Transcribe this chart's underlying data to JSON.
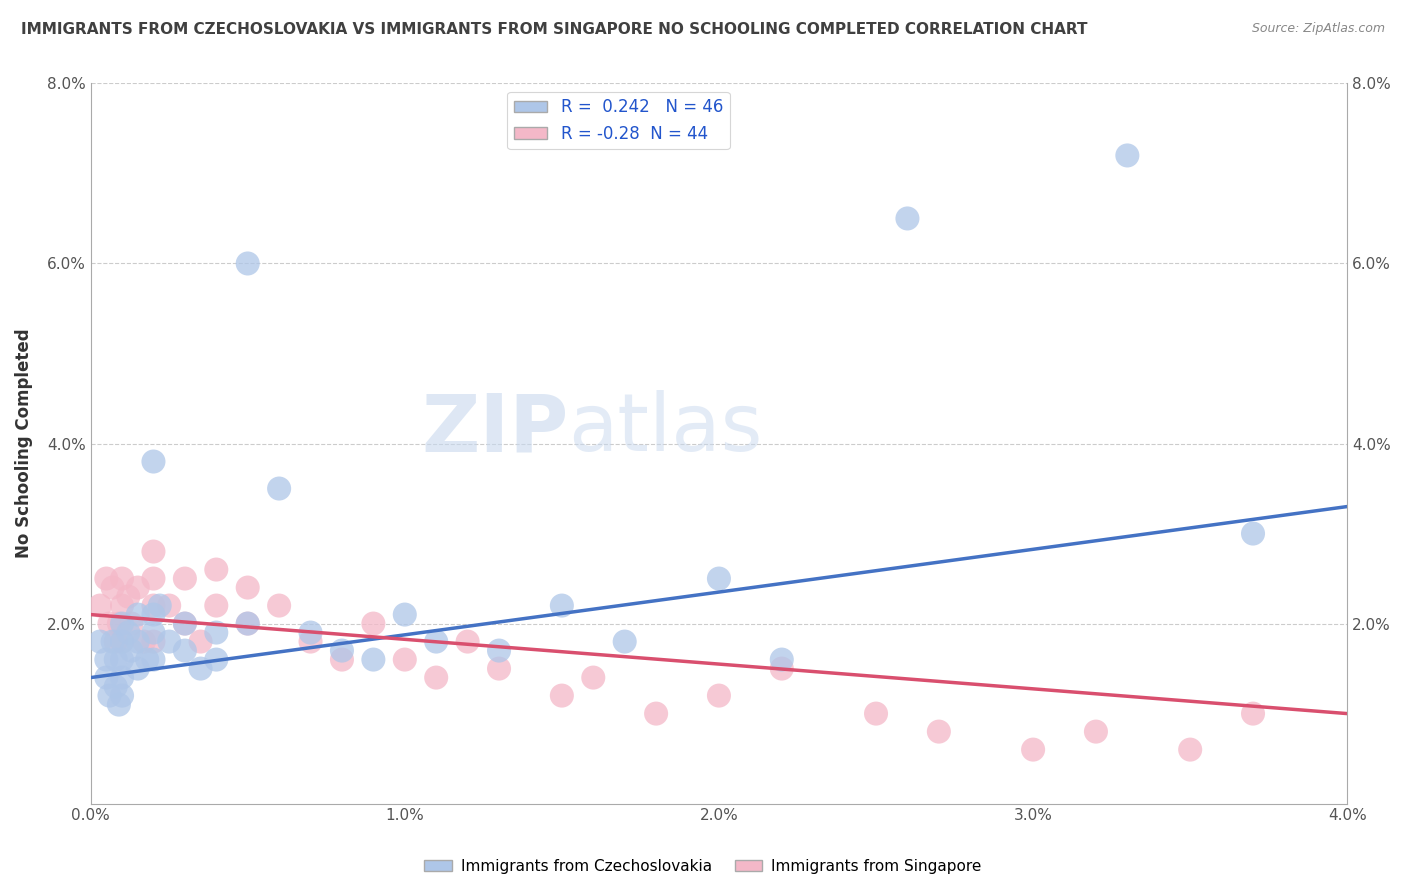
{
  "title": "IMMIGRANTS FROM CZECHOSLOVAKIA VS IMMIGRANTS FROM SINGAPORE NO SCHOOLING COMPLETED CORRELATION CHART",
  "source": "Source: ZipAtlas.com",
  "ylabel": "No Schooling Completed",
  "xlabel": "",
  "watermark": "ZIPatlas",
  "blue_R": 0.242,
  "blue_N": 46,
  "pink_R": -0.28,
  "pink_N": 44,
  "blue_label": "Immigrants from Czechoslovakia",
  "pink_label": "Immigrants from Singapore",
  "xlim": [
    0.0,
    0.04
  ],
  "ylim": [
    0.0,
    0.08
  ],
  "xticks": [
    0.0,
    0.01,
    0.02,
    0.03,
    0.04
  ],
  "yticks": [
    0.0,
    0.02,
    0.04,
    0.06,
    0.08
  ],
  "xtick_labels": [
    "0.0%",
    "1.0%",
    "2.0%",
    "3.0%",
    "4.0%"
  ],
  "ytick_labels": [
    "",
    "2.0%",
    "4.0%",
    "6.0%",
    "8.0%"
  ],
  "blue_color": "#aec6e8",
  "pink_color": "#f4b8c8",
  "blue_line_color": "#4472c4",
  "pink_line_color": "#d94f6e",
  "grid_color": "#cccccc",
  "title_color": "#404040",
  "blue_scatter_x": [
    0.0003,
    0.0005,
    0.0005,
    0.0006,
    0.0007,
    0.0008,
    0.0008,
    0.0009,
    0.001,
    0.001,
    0.001,
    0.001,
    0.001,
    0.0012,
    0.0013,
    0.0015,
    0.0015,
    0.0015,
    0.0018,
    0.002,
    0.002,
    0.002,
    0.002,
    0.0022,
    0.0025,
    0.003,
    0.003,
    0.0035,
    0.004,
    0.004,
    0.005,
    0.005,
    0.006,
    0.007,
    0.008,
    0.009,
    0.01,
    0.011,
    0.013,
    0.015,
    0.017,
    0.02,
    0.022,
    0.026,
    0.033,
    0.037
  ],
  "blue_scatter_y": [
    0.018,
    0.016,
    0.014,
    0.012,
    0.018,
    0.016,
    0.013,
    0.011,
    0.02,
    0.018,
    0.016,
    0.014,
    0.012,
    0.019,
    0.017,
    0.021,
    0.018,
    0.015,
    0.016,
    0.038,
    0.021,
    0.019,
    0.016,
    0.022,
    0.018,
    0.02,
    0.017,
    0.015,
    0.019,
    0.016,
    0.06,
    0.02,
    0.035,
    0.019,
    0.017,
    0.016,
    0.021,
    0.018,
    0.017,
    0.022,
    0.018,
    0.025,
    0.016,
    0.065,
    0.072,
    0.03
  ],
  "pink_scatter_x": [
    0.0003,
    0.0005,
    0.0006,
    0.0007,
    0.0008,
    0.0009,
    0.001,
    0.001,
    0.001,
    0.0012,
    0.0013,
    0.0015,
    0.0017,
    0.002,
    0.002,
    0.002,
    0.002,
    0.0025,
    0.003,
    0.003,
    0.0035,
    0.004,
    0.004,
    0.005,
    0.005,
    0.006,
    0.007,
    0.008,
    0.009,
    0.01,
    0.011,
    0.012,
    0.013,
    0.015,
    0.016,
    0.018,
    0.02,
    0.022,
    0.025,
    0.027,
    0.03,
    0.032,
    0.035,
    0.037
  ],
  "pink_scatter_y": [
    0.022,
    0.025,
    0.02,
    0.024,
    0.018,
    0.02,
    0.025,
    0.022,
    0.018,
    0.023,
    0.02,
    0.024,
    0.018,
    0.028,
    0.025,
    0.022,
    0.018,
    0.022,
    0.025,
    0.02,
    0.018,
    0.026,
    0.022,
    0.024,
    0.02,
    0.022,
    0.018,
    0.016,
    0.02,
    0.016,
    0.014,
    0.018,
    0.015,
    0.012,
    0.014,
    0.01,
    0.012,
    0.015,
    0.01,
    0.008,
    0.006,
    0.008,
    0.006,
    0.01
  ],
  "blue_trend_x": [
    0.0,
    0.04
  ],
  "blue_trend_y": [
    0.014,
    0.033
  ],
  "pink_trend_x": [
    0.0,
    0.04
  ],
  "pink_trend_y": [
    0.021,
    0.01
  ]
}
